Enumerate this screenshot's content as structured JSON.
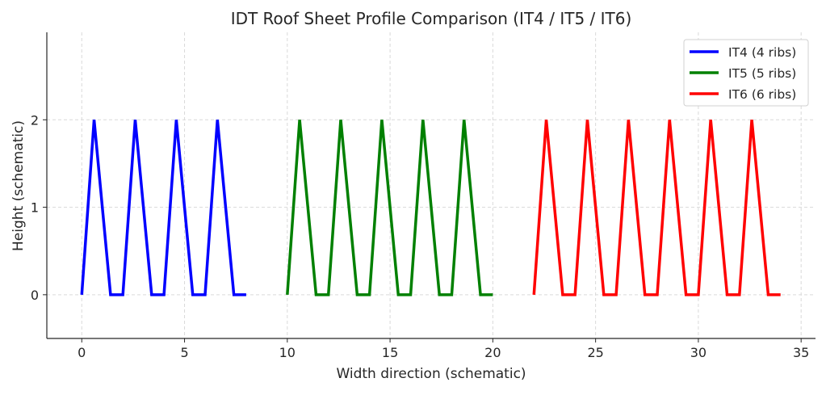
{
  "chart_data": {
    "type": "line",
    "title": "IDT Roof Sheet Profile Comparison (IT4 / IT5 / IT6)",
    "xlabel": "Width direction (schematic)",
    "ylabel": "Height (schematic)",
    "xlim": [
      -1.7,
      35.7
    ],
    "ylim": [
      -0.5,
      3.0
    ],
    "xticks": [
      0,
      5,
      10,
      15,
      20,
      25,
      30,
      35
    ],
    "yticks": [
      0,
      1,
      2
    ],
    "grid": true,
    "legend_position": "top-right",
    "series": [
      {
        "name": "IT4 (4 ribs)",
        "color": "#0000ff",
        "x": [
          0,
          0.6,
          1.4,
          2,
          2.6,
          3.4,
          4,
          4.6,
          5.4,
          6,
          6.6,
          7.4,
          8
        ],
        "y": [
          0,
          2,
          0,
          0,
          2,
          0,
          0,
          2,
          0,
          0,
          2,
          0,
          0
        ]
      },
      {
        "name": "IT5 (5 ribs)",
        "color": "#008000",
        "x": [
          10,
          10.6,
          11.4,
          12,
          12.6,
          13.4,
          14,
          14.6,
          15.4,
          16,
          16.6,
          17.4,
          18,
          18.6,
          19.4,
          20
        ],
        "y": [
          0,
          2,
          0,
          0,
          2,
          0,
          0,
          2,
          0,
          0,
          2,
          0,
          0,
          2,
          0,
          0
        ]
      },
      {
        "name": "IT6 (6 ribs)",
        "color": "#ff0000",
        "x": [
          22,
          22.6,
          23.4,
          24,
          24.6,
          25.4,
          26,
          26.6,
          27.4,
          28,
          28.6,
          29.4,
          30,
          30.6,
          31.4,
          32,
          32.6,
          33.4,
          34
        ],
        "y": [
          0,
          2,
          0,
          0,
          2,
          0,
          0,
          2,
          0,
          0,
          2,
          0,
          0,
          2,
          0,
          0,
          2,
          0,
          0
        ]
      }
    ]
  }
}
